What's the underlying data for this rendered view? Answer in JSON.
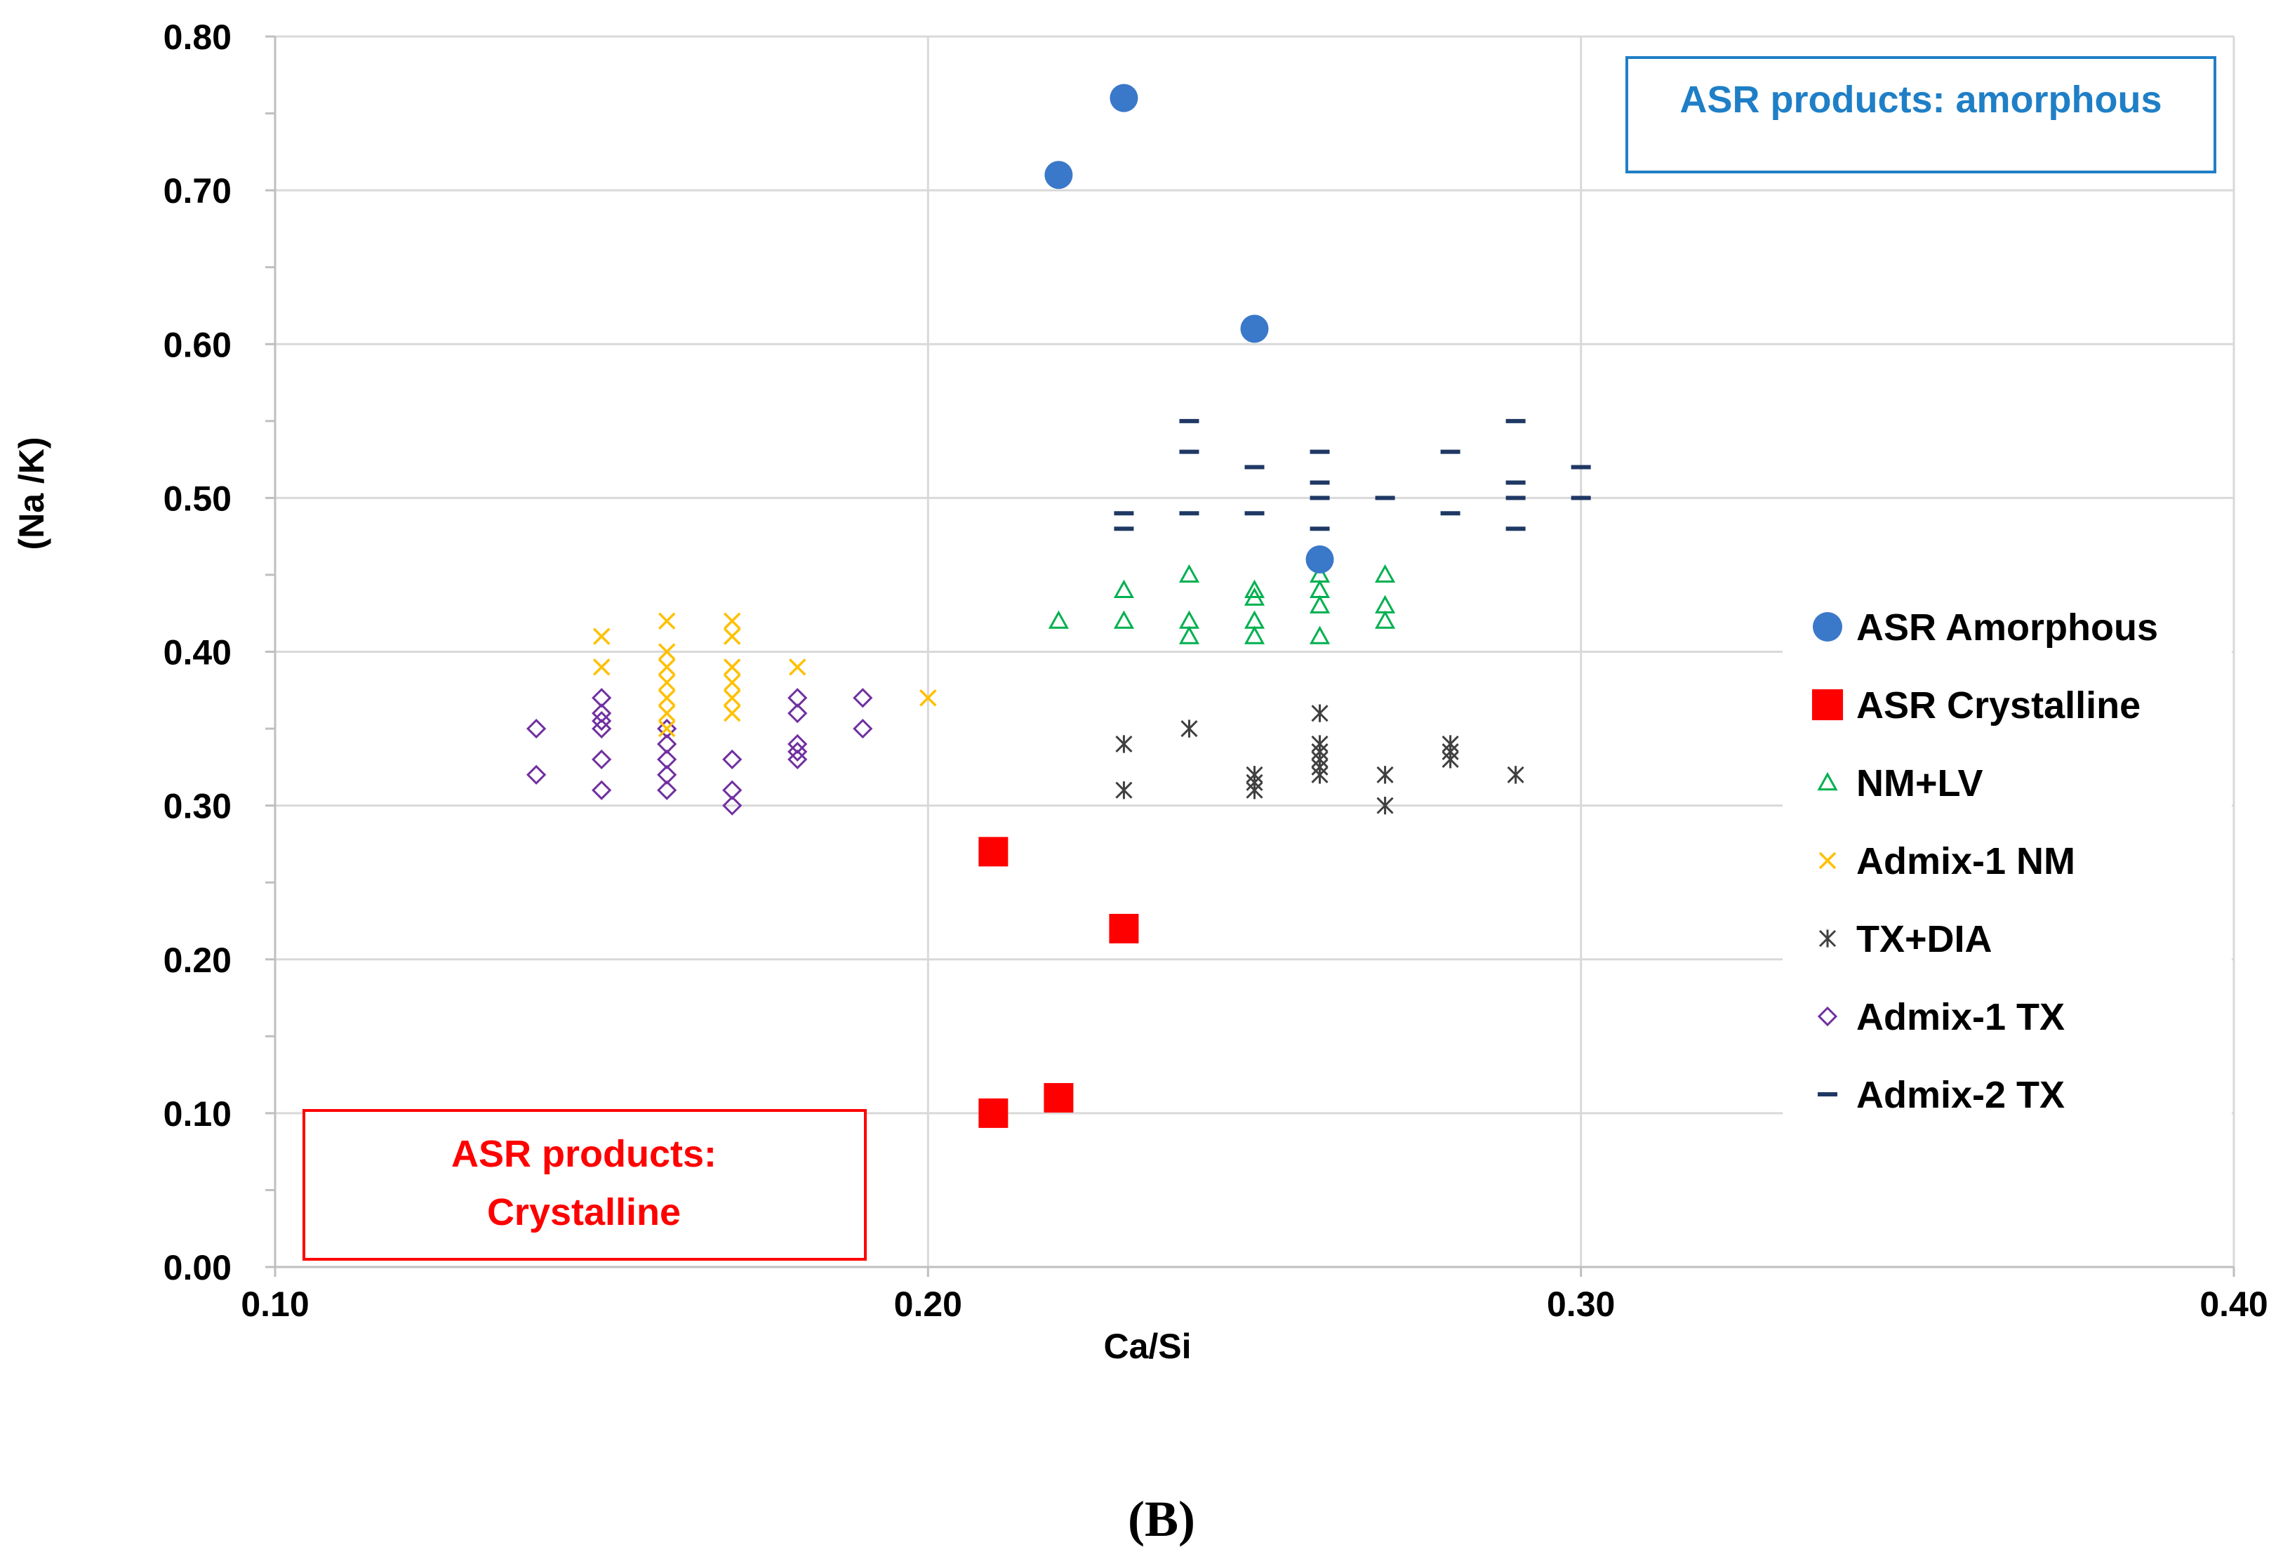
{
  "chart_data": {
    "type": "scatter",
    "title": "",
    "xlabel": "Ca/Si",
    "ylabel": "(Na /K)",
    "xlim": [
      0.1,
      0.4
    ],
    "ylim": [
      0.0,
      0.8
    ],
    "x_ticks": [
      "0.10",
      "0.20",
      "0.30",
      "0.40"
    ],
    "y_ticks": [
      "0.00",
      "0.10",
      "0.20",
      "0.30",
      "0.40",
      "0.50",
      "0.60",
      "0.70",
      "0.80"
    ],
    "grid": true,
    "legend_position": "right",
    "series": [
      {
        "name": "ASR Amorphous",
        "marker": "circle",
        "color": "#3a78c9",
        "points": [
          [
            0.22,
            0.71
          ],
          [
            0.23,
            0.76
          ],
          [
            0.25,
            0.61
          ],
          [
            0.26,
            0.46
          ]
        ]
      },
      {
        "name": "ASR Crystalline",
        "marker": "square",
        "color": "#ff0000",
        "points": [
          [
            0.21,
            0.27
          ],
          [
            0.23,
            0.22
          ],
          [
            0.21,
            0.1
          ],
          [
            0.22,
            0.11
          ]
        ]
      },
      {
        "name": "NM+LV",
        "marker": "triangle",
        "color": "#00b050",
        "points": [
          [
            0.22,
            0.42
          ],
          [
            0.23,
            0.44
          ],
          [
            0.23,
            0.42
          ],
          [
            0.24,
            0.45
          ],
          [
            0.24,
            0.42
          ],
          [
            0.24,
            0.41
          ],
          [
            0.25,
            0.44
          ],
          [
            0.25,
            0.435
          ],
          [
            0.25,
            0.42
          ],
          [
            0.25,
            0.41
          ],
          [
            0.26,
            0.45
          ],
          [
            0.26,
            0.44
          ],
          [
            0.26,
            0.43
          ],
          [
            0.26,
            0.41
          ],
          [
            0.27,
            0.45
          ],
          [
            0.27,
            0.43
          ],
          [
            0.27,
            0.42
          ]
        ]
      },
      {
        "name": "Admix-1 NM",
        "marker": "x",
        "color": "#ffc000",
        "points": [
          [
            0.15,
            0.41
          ],
          [
            0.15,
            0.39
          ],
          [
            0.16,
            0.42
          ],
          [
            0.16,
            0.4
          ],
          [
            0.16,
            0.39
          ],
          [
            0.16,
            0.38
          ],
          [
            0.16,
            0.37
          ],
          [
            0.16,
            0.36
          ],
          [
            0.16,
            0.35
          ],
          [
            0.17,
            0.42
          ],
          [
            0.17,
            0.41
          ],
          [
            0.17,
            0.39
          ],
          [
            0.17,
            0.38
          ],
          [
            0.17,
            0.37
          ],
          [
            0.17,
            0.36
          ],
          [
            0.18,
            0.39
          ],
          [
            0.2,
            0.37
          ]
        ]
      },
      {
        "name": "TX+DIA",
        "marker": "asterisk",
        "color": "#404040",
        "points": [
          [
            0.23,
            0.34
          ],
          [
            0.23,
            0.31
          ],
          [
            0.24,
            0.35
          ],
          [
            0.25,
            0.32
          ],
          [
            0.25,
            0.315
          ],
          [
            0.25,
            0.31
          ],
          [
            0.26,
            0.36
          ],
          [
            0.26,
            0.34
          ],
          [
            0.26,
            0.335
          ],
          [
            0.26,
            0.33
          ],
          [
            0.26,
            0.325
          ],
          [
            0.26,
            0.32
          ],
          [
            0.27,
            0.32
          ],
          [
            0.27,
            0.3
          ],
          [
            0.28,
            0.34
          ],
          [
            0.28,
            0.335
          ],
          [
            0.28,
            0.33
          ],
          [
            0.29,
            0.32
          ]
        ]
      },
      {
        "name": "Admix-1 TX",
        "marker": "diamond",
        "color": "#7030a0",
        "points": [
          [
            0.14,
            0.35
          ],
          [
            0.14,
            0.32
          ],
          [
            0.15,
            0.37
          ],
          [
            0.15,
            0.36
          ],
          [
            0.15,
            0.355
          ],
          [
            0.15,
            0.35
          ],
          [
            0.15,
            0.33
          ],
          [
            0.15,
            0.31
          ],
          [
            0.16,
            0.35
          ],
          [
            0.16,
            0.34
          ],
          [
            0.16,
            0.33
          ],
          [
            0.16,
            0.32
          ],
          [
            0.16,
            0.31
          ],
          [
            0.17,
            0.33
          ],
          [
            0.17,
            0.31
          ],
          [
            0.17,
            0.3
          ],
          [
            0.18,
            0.37
          ],
          [
            0.18,
            0.36
          ],
          [
            0.18,
            0.34
          ],
          [
            0.18,
            0.335
          ],
          [
            0.18,
            0.33
          ],
          [
            0.19,
            0.37
          ],
          [
            0.19,
            0.35
          ]
        ]
      },
      {
        "name": "Admix-2 TX",
        "marker": "dash",
        "color": "#1f3864",
        "points": [
          [
            0.23,
            0.49
          ],
          [
            0.23,
            0.48
          ],
          [
            0.24,
            0.55
          ],
          [
            0.24,
            0.53
          ],
          [
            0.24,
            0.49
          ],
          [
            0.25,
            0.52
          ],
          [
            0.25,
            0.49
          ],
          [
            0.26,
            0.53
          ],
          [
            0.26,
            0.51
          ],
          [
            0.26,
            0.5
          ],
          [
            0.26,
            0.48
          ],
          [
            0.27,
            0.5
          ],
          [
            0.28,
            0.53
          ],
          [
            0.28,
            0.49
          ],
          [
            0.29,
            0.55
          ],
          [
            0.29,
            0.51
          ],
          [
            0.29,
            0.5
          ],
          [
            0.29,
            0.48
          ],
          [
            0.3,
            0.52
          ],
          [
            0.3,
            0.5
          ]
        ]
      }
    ],
    "annotations": [
      {
        "text": "ASR products: amorphous",
        "color": "#1f7fc6",
        "position": "top-right"
      },
      {
        "lines": [
          "ASR products:",
          "Crystalline"
        ],
        "color": "#ff0000",
        "position": "bottom-left"
      }
    ]
  },
  "panel_label": "(B)"
}
